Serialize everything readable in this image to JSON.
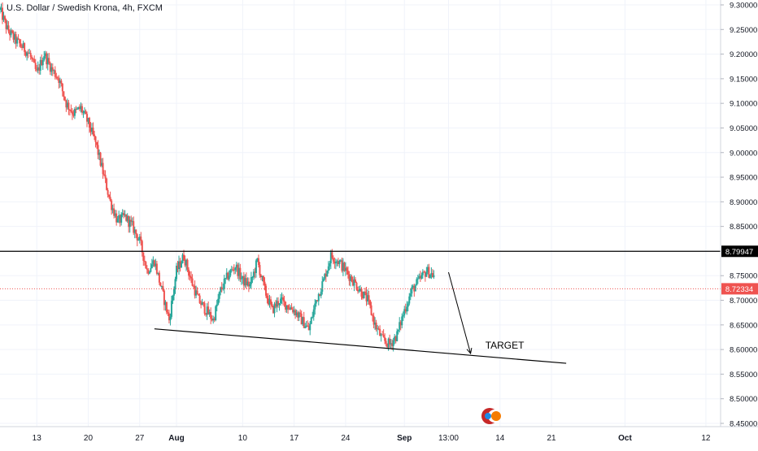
{
  "chart_data": {
    "type": "candlestick",
    "title": "U.S. Dollar / Swedish Krona, 4h, FXCM",
    "y_axis_position": "right",
    "ylim": [
      8.45,
      9.31
    ],
    "yticks": [
      9.3,
      9.25,
      9.2,
      9.15,
      9.1,
      9.05,
      9.0,
      8.95,
      8.9,
      8.85,
      8.75,
      8.7,
      8.65,
      8.6,
      8.55,
      8.5,
      8.45
    ],
    "ytick_labels": [
      "9.30000",
      "9.25000",
      "9.20000",
      "9.15000",
      "9.10000",
      "9.05000",
      "9.00000",
      "8.95000",
      "8.90000",
      "8.85000",
      "8.75000",
      "8.70000",
      "8.65000",
      "8.60000",
      "8.55000",
      "8.50000",
      "8.45000"
    ],
    "xlim": [
      "2020-07-08",
      "2020-10-14"
    ],
    "xticks": [
      "2020-07-13",
      "2020-07-20",
      "2020-07-27",
      "2020-08-01",
      "2020-08-10",
      "2020-08-17",
      "2020-08-24",
      "2020-09-01",
      "2020-09-07",
      "2020-09-14",
      "2020-09-21",
      "2020-10-01",
      "2020-10-12"
    ],
    "xtick_labels": [
      "13",
      "20",
      "27",
      "Aug",
      "10",
      "17",
      "24",
      "Sep",
      "13:00",
      "14",
      "21",
      "Oct",
      "12"
    ],
    "colors": {
      "up": "#26a69a",
      "down": "#ef5350",
      "grid": "#f0f3fa",
      "axis_text": "#131722"
    },
    "candles_anchor_close": [
      [
        "2020-07-08",
        9.29
      ],
      [
        "2020-07-09",
        9.25
      ],
      [
        "2020-07-10",
        9.23
      ],
      [
        "2020-07-12",
        9.2
      ],
      [
        "2020-07-13",
        9.16
      ],
      [
        "2020-07-14",
        9.2
      ],
      [
        "2020-07-15",
        9.17
      ],
      [
        "2020-07-16",
        9.15
      ],
      [
        "2020-07-17",
        9.1
      ],
      [
        "2020-07-18",
        9.08
      ],
      [
        "2020-07-19",
        9.09
      ],
      [
        "2020-07-20",
        9.06
      ],
      [
        "2020-07-21",
        9.02
      ],
      [
        "2020-07-22",
        8.96
      ],
      [
        "2020-07-23",
        8.9
      ],
      [
        "2020-07-24",
        8.86
      ],
      [
        "2020-07-25",
        8.87
      ],
      [
        "2020-07-26",
        8.85
      ],
      [
        "2020-07-27",
        8.82
      ],
      [
        "2020-07-28",
        8.76
      ],
      [
        "2020-07-29",
        8.78
      ],
      [
        "2020-07-30",
        8.72
      ],
      [
        "2020-07-31",
        8.66
      ],
      [
        "2020-08-01",
        8.76
      ],
      [
        "2020-08-02",
        8.79
      ],
      [
        "2020-08-03",
        8.74
      ],
      [
        "2020-08-04",
        8.7
      ],
      [
        "2020-08-05",
        8.68
      ],
      [
        "2020-08-06",
        8.66
      ],
      [
        "2020-08-07",
        8.72
      ],
      [
        "2020-08-08",
        8.75
      ],
      [
        "2020-08-09",
        8.77
      ],
      [
        "2020-08-10",
        8.74
      ],
      [
        "2020-08-11",
        8.73
      ],
      [
        "2020-08-12",
        8.78
      ],
      [
        "2020-08-13",
        8.72
      ],
      [
        "2020-08-14",
        8.68
      ],
      [
        "2020-08-15",
        8.7
      ],
      [
        "2020-08-16",
        8.69
      ],
      [
        "2020-08-17",
        8.68
      ],
      [
        "2020-08-18",
        8.66
      ],
      [
        "2020-08-19",
        8.64
      ],
      [
        "2020-08-20",
        8.7
      ],
      [
        "2020-08-21",
        8.74
      ],
      [
        "2020-08-22",
        8.79
      ],
      [
        "2020-08-23",
        8.78
      ],
      [
        "2020-08-24",
        8.76
      ],
      [
        "2020-08-25",
        8.74
      ],
      [
        "2020-08-26",
        8.72
      ],
      [
        "2020-08-27",
        8.7
      ],
      [
        "2020-08-28",
        8.65
      ],
      [
        "2020-08-29",
        8.62
      ],
      [
        "2020-08-30",
        8.61
      ],
      [
        "2020-08-31",
        8.63
      ],
      [
        "2020-09-01",
        8.68
      ],
      [
        "2020-09-02",
        8.72
      ],
      [
        "2020-09-03",
        8.74
      ],
      [
        "2020-09-04",
        8.76
      ],
      [
        "2020-09-05",
        8.75
      ]
    ],
    "annotations": {
      "resistance": {
        "price": 8.79947,
        "label": "8.79947"
      },
      "last_price": {
        "price": 8.72334,
        "label": "8.72334"
      },
      "support_trendline": {
        "from": [
          "2020-07-29",
          8.642
        ],
        "to": [
          "2020-09-23",
          8.572
        ]
      },
      "arrow": {
        "from": [
          "2020-09-07",
          8.757
        ],
        "to": [
          "2020-09-10",
          8.592
        ]
      },
      "target_label": {
        "text": "TARGET",
        "at": [
          "2020-09-12",
          8.602
        ]
      }
    }
  }
}
